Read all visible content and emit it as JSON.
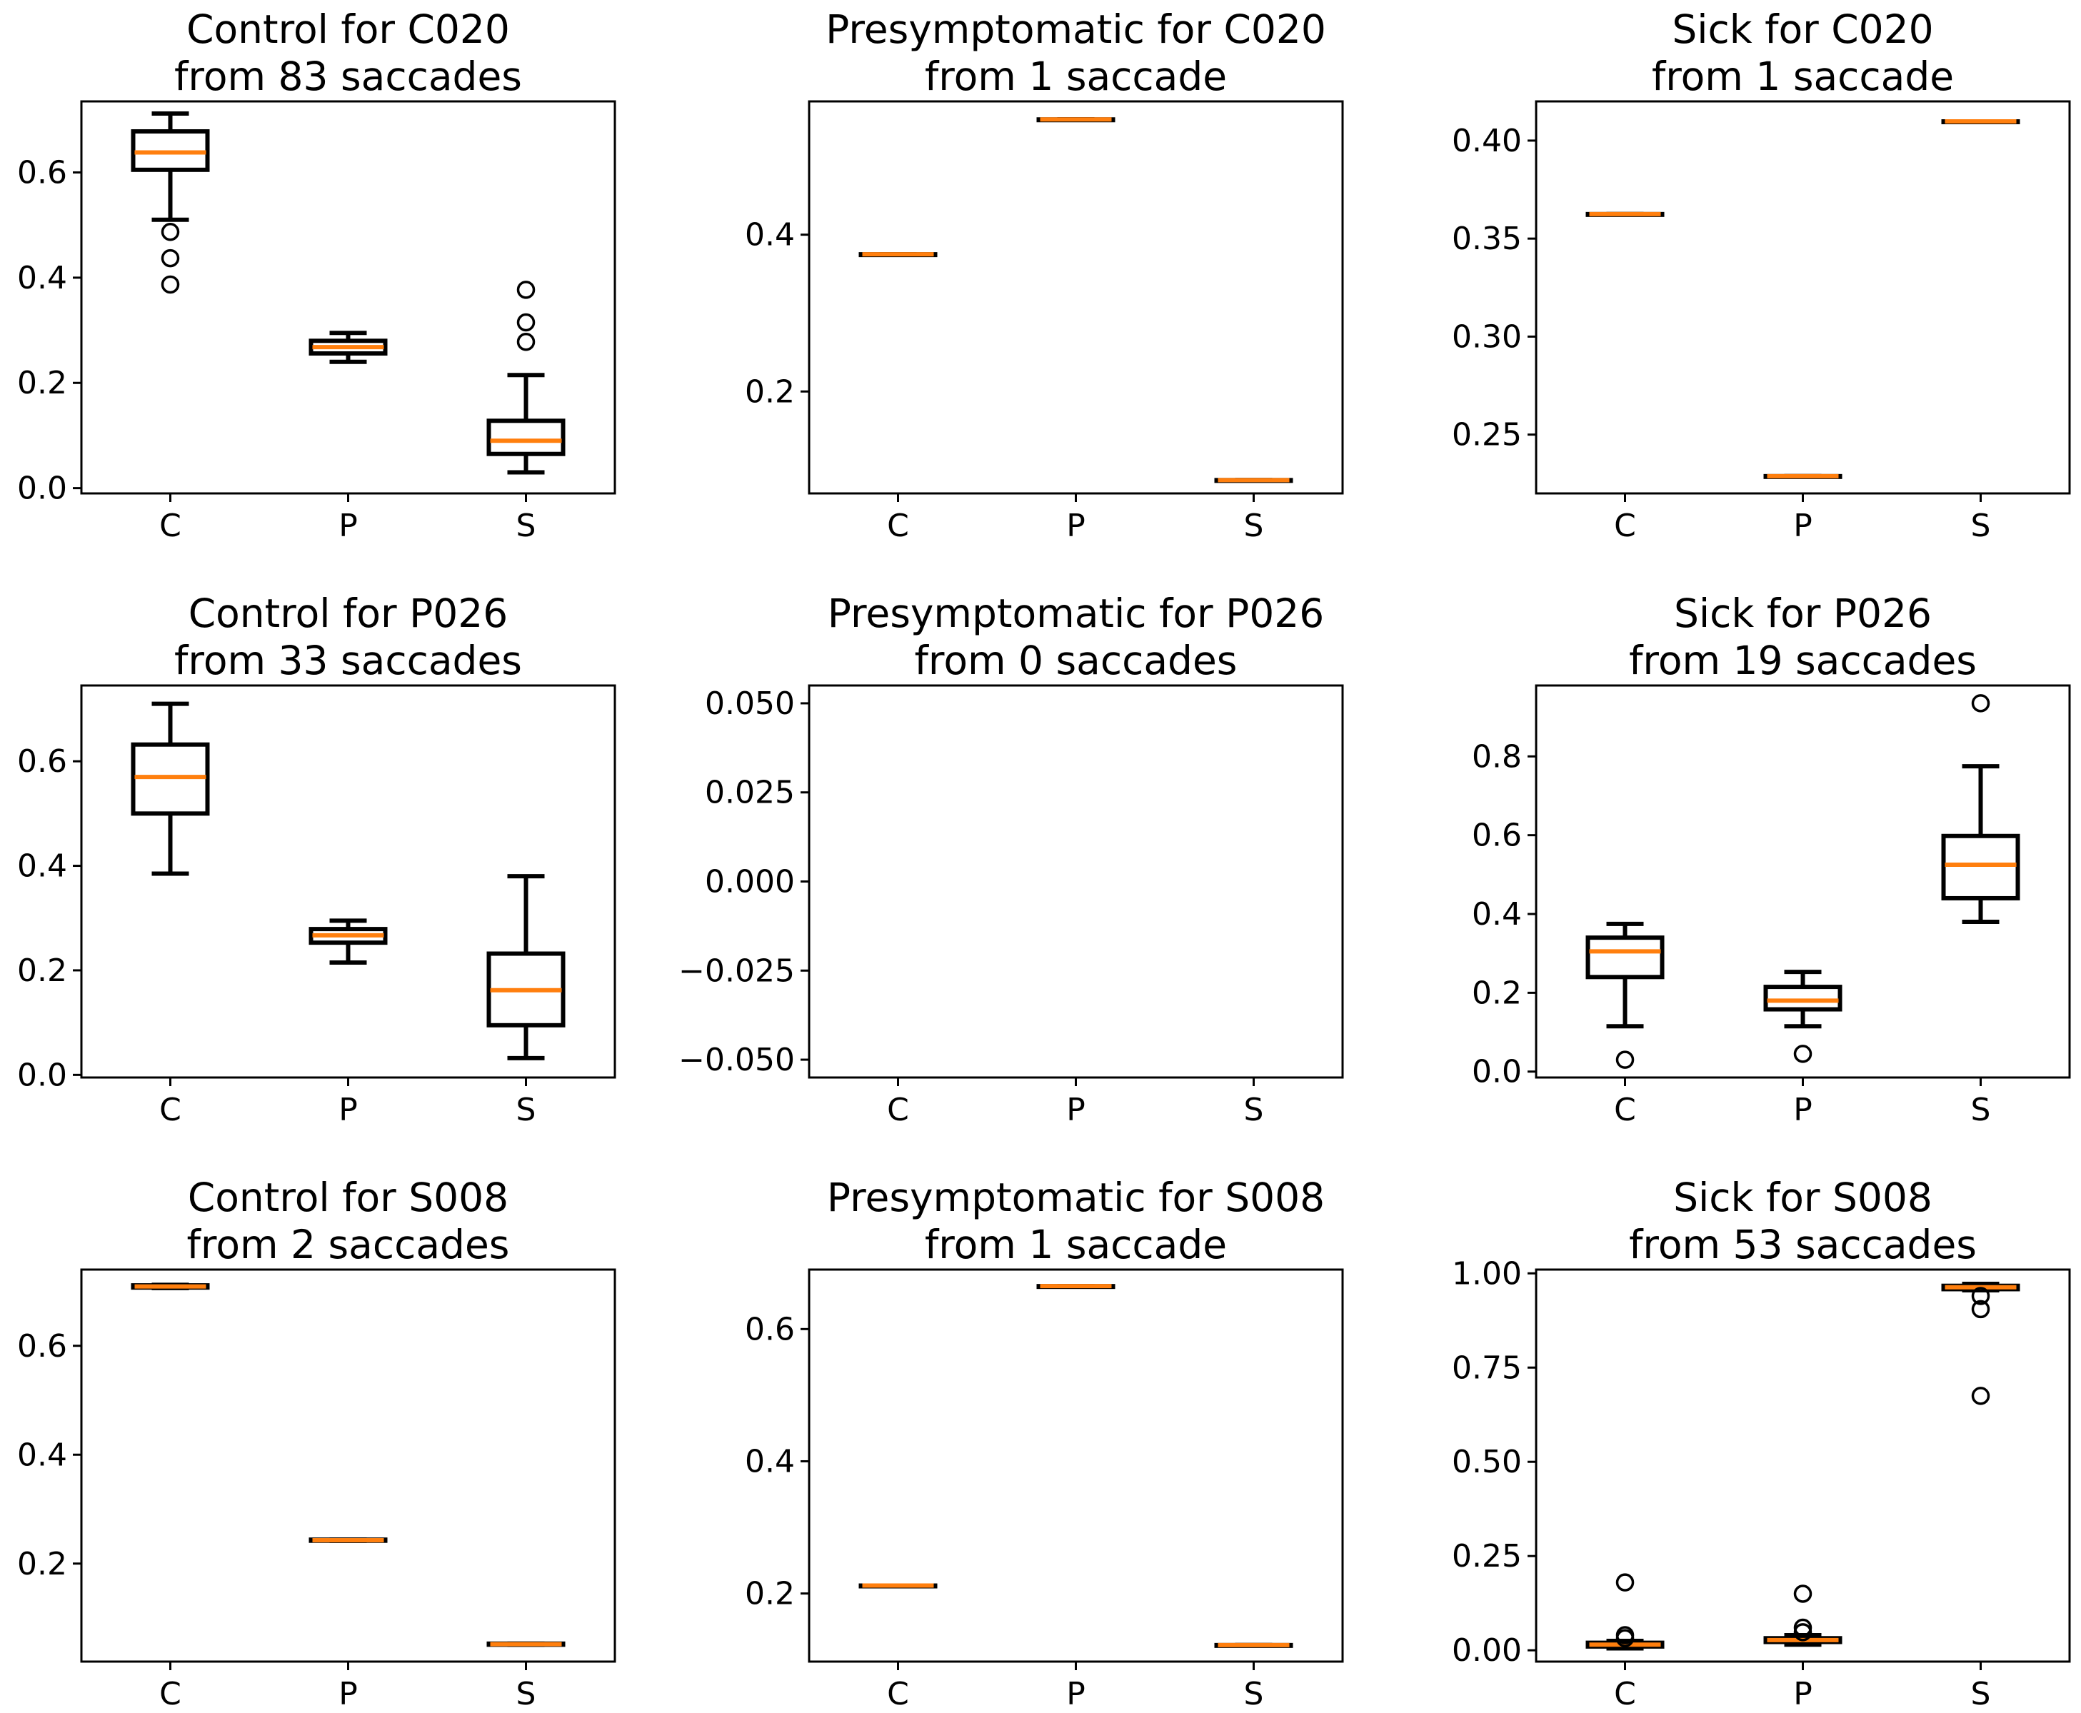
{
  "figure": {
    "colors": {
      "box": "#000000",
      "median": "#ff7f0e",
      "background": "#ffffff"
    }
  },
  "chart_data": [
    {
      "type": "boxplot",
      "title": "Control for C020",
      "subtitle": "from 83 saccades",
      "categories": [
        "C",
        "P",
        "S"
      ],
      "ylim": [
        -0.01,
        0.735
      ],
      "yticks": [
        {
          "value": 0.0,
          "label": "0.0"
        },
        {
          "value": 0.2,
          "label": "0.2"
        },
        {
          "value": 0.4,
          "label": "0.4"
        },
        {
          "value": 0.6,
          "label": "0.6"
        }
      ],
      "boxes": [
        {
          "label": "C",
          "whislo": 0.51,
          "q1": 0.605,
          "med": 0.638,
          "q3": 0.678,
          "whishi": 0.712,
          "fliers": [
            0.487,
            0.437,
            0.387
          ]
        },
        {
          "label": "P",
          "whislo": 0.24,
          "q1": 0.256,
          "med": 0.268,
          "q3": 0.28,
          "whishi": 0.295,
          "fliers": []
        },
        {
          "label": "S",
          "whislo": 0.03,
          "q1": 0.065,
          "med": 0.09,
          "q3": 0.128,
          "whishi": 0.215,
          "fliers": [
            0.377,
            0.315,
            0.278
          ]
        }
      ]
    },
    {
      "type": "boxplot",
      "title": "Presymptomatic for C020",
      "subtitle": "from 1 saccade",
      "categories": [
        "C",
        "P",
        "S"
      ],
      "ylim": [
        0.07,
        0.57
      ],
      "yticks": [
        {
          "value": 0.2,
          "label": "0.2"
        },
        {
          "value": 0.4,
          "label": "0.4"
        }
      ],
      "boxes": [
        {
          "label": "C",
          "whislo": 0.375,
          "q1": 0.375,
          "med": 0.375,
          "q3": 0.375,
          "whishi": 0.375,
          "fliers": []
        },
        {
          "label": "P",
          "whislo": 0.547,
          "q1": 0.547,
          "med": 0.547,
          "q3": 0.547,
          "whishi": 0.547,
          "fliers": []
        },
        {
          "label": "S",
          "whislo": 0.087,
          "q1": 0.087,
          "med": 0.087,
          "q3": 0.087,
          "whishi": 0.087,
          "fliers": []
        }
      ]
    },
    {
      "type": "boxplot",
      "title": "Sick for C020",
      "subtitle": "from 1 saccade",
      "categories": [
        "C",
        "P",
        "S"
      ],
      "ylim": [
        0.22,
        0.42
      ],
      "yticks": [
        {
          "value": 0.25,
          "label": "0.25"
        },
        {
          "value": 0.3,
          "label": "0.30"
        },
        {
          "value": 0.35,
          "label": "0.35"
        },
        {
          "value": 0.4,
          "label": "0.40"
        }
      ],
      "boxes": [
        {
          "label": "C",
          "whislo": 0.3625,
          "q1": 0.3625,
          "med": 0.3625,
          "q3": 0.3625,
          "whishi": 0.3625,
          "fliers": []
        },
        {
          "label": "P",
          "whislo": 0.2288,
          "q1": 0.2288,
          "med": 0.2288,
          "q3": 0.2288,
          "whishi": 0.2288,
          "fliers": []
        },
        {
          "label": "S",
          "whislo": 0.4098,
          "q1": 0.4098,
          "med": 0.4098,
          "q3": 0.4098,
          "whishi": 0.4098,
          "fliers": []
        }
      ]
    },
    {
      "type": "boxplot",
      "title": "Control for P026",
      "subtitle": "from 33 saccades",
      "categories": [
        "C",
        "P",
        "S"
      ],
      "ylim": [
        -0.005,
        0.745
      ],
      "yticks": [
        {
          "value": 0.0,
          "label": "0.0"
        },
        {
          "value": 0.2,
          "label": "0.2"
        },
        {
          "value": 0.4,
          "label": "0.4"
        },
        {
          "value": 0.6,
          "label": "0.6"
        }
      ],
      "boxes": [
        {
          "label": "C",
          "whislo": 0.385,
          "q1": 0.5,
          "med": 0.57,
          "q3": 0.632,
          "whishi": 0.71,
          "fliers": []
        },
        {
          "label": "P",
          "whislo": 0.215,
          "q1": 0.253,
          "med": 0.267,
          "q3": 0.279,
          "whishi": 0.295,
          "fliers": []
        },
        {
          "label": "S",
          "whislo": 0.032,
          "q1": 0.095,
          "med": 0.162,
          "q3": 0.232,
          "whishi": 0.38,
          "fliers": []
        }
      ]
    },
    {
      "type": "boxplot",
      "title": "Presymptomatic for P026",
      "subtitle": "from 0 saccades",
      "categories": [
        "C",
        "P",
        "S"
      ],
      "ylim": [
        -0.055,
        0.055
      ],
      "yticks": [
        {
          "value": -0.05,
          "label": "−0.050"
        },
        {
          "value": -0.025,
          "label": "−0.025"
        },
        {
          "value": 0.0,
          "label": "0.000"
        },
        {
          "value": 0.025,
          "label": "0.025"
        },
        {
          "value": 0.05,
          "label": "0.050"
        }
      ],
      "boxes": []
    },
    {
      "type": "boxplot",
      "title": "Sick for P026",
      "subtitle": "from 19 saccades",
      "categories": [
        "C",
        "P",
        "S"
      ],
      "ylim": [
        -0.015,
        0.98
      ],
      "yticks": [
        {
          "value": 0.0,
          "label": "0.0"
        },
        {
          "value": 0.2,
          "label": "0.2"
        },
        {
          "value": 0.4,
          "label": "0.4"
        },
        {
          "value": 0.6,
          "label": "0.6"
        },
        {
          "value": 0.8,
          "label": "0.8"
        }
      ],
      "boxes": [
        {
          "label": "C",
          "whislo": 0.115,
          "q1": 0.24,
          "med": 0.305,
          "q3": 0.34,
          "whishi": 0.375,
          "fliers": [
            0.03
          ]
        },
        {
          "label": "P",
          "whislo": 0.115,
          "q1": 0.158,
          "med": 0.18,
          "q3": 0.215,
          "whishi": 0.253,
          "fliers": [
            0.045
          ]
        },
        {
          "label": "S",
          "whislo": 0.38,
          "q1": 0.44,
          "med": 0.525,
          "q3": 0.598,
          "whishi": 0.775,
          "fliers": [
            0.935
          ]
        }
      ]
    },
    {
      "type": "boxplot",
      "title": "Control for S008",
      "subtitle": "from 2 saccades",
      "categories": [
        "C",
        "P",
        "S"
      ],
      "ylim": [
        0.02,
        0.74
      ],
      "yticks": [
        {
          "value": 0.2,
          "label": "0.2"
        },
        {
          "value": 0.4,
          "label": "0.4"
        },
        {
          "value": 0.6,
          "label": "0.6"
        }
      ],
      "boxes": [
        {
          "label": "C",
          "whislo": 0.706,
          "q1": 0.707,
          "med": 0.709,
          "q3": 0.711,
          "whishi": 0.712,
          "fliers": []
        },
        {
          "label": "P",
          "whislo": 0.242,
          "q1": 0.242,
          "med": 0.243,
          "q3": 0.244,
          "whishi": 0.244,
          "fliers": []
        },
        {
          "label": "S",
          "whislo": 0.051,
          "q1": 0.051,
          "med": 0.052,
          "q3": 0.053,
          "whishi": 0.053,
          "fliers": []
        }
      ]
    },
    {
      "type": "boxplot",
      "title": "Presymptomatic for S008",
      "subtitle": "from 1 saccade",
      "categories": [
        "C",
        "P",
        "S"
      ],
      "ylim": [
        0.097,
        0.69
      ],
      "yticks": [
        {
          "value": 0.2,
          "label": "0.2"
        },
        {
          "value": 0.4,
          "label": "0.4"
        },
        {
          "value": 0.6,
          "label": "0.6"
        }
      ],
      "boxes": [
        {
          "label": "C",
          "whislo": 0.212,
          "q1": 0.212,
          "med": 0.212,
          "q3": 0.212,
          "whishi": 0.212,
          "fliers": []
        },
        {
          "label": "P",
          "whislo": 0.665,
          "q1": 0.665,
          "med": 0.665,
          "q3": 0.665,
          "whishi": 0.665,
          "fliers": []
        },
        {
          "label": "S",
          "whislo": 0.122,
          "q1": 0.122,
          "med": 0.122,
          "q3": 0.122,
          "whishi": 0.122,
          "fliers": []
        }
      ]
    },
    {
      "type": "boxplot",
      "title": "Sick for S008",
      "subtitle": "from 53 saccades",
      "categories": [
        "C",
        "P",
        "S"
      ],
      "ylim": [
        -0.03,
        1.01
      ],
      "yticks": [
        {
          "value": 0.0,
          "label": "0.00"
        },
        {
          "value": 0.25,
          "label": "0.25"
        },
        {
          "value": 0.5,
          "label": "0.50"
        },
        {
          "value": 0.75,
          "label": "0.75"
        },
        {
          "value": 1.0,
          "label": "1.00"
        }
      ],
      "boxes": [
        {
          "label": "C",
          "whislo": 0.005,
          "q1": 0.01,
          "med": 0.015,
          "q3": 0.02,
          "whishi": 0.025,
          "fliers": [
            0.18,
            0.04,
            0.032
          ]
        },
        {
          "label": "P",
          "whislo": 0.015,
          "q1": 0.022,
          "med": 0.027,
          "q3": 0.032,
          "whishi": 0.04,
          "fliers": [
            0.15,
            0.06,
            0.048
          ]
        },
        {
          "label": "S",
          "whislo": 0.955,
          "q1": 0.958,
          "med": 0.963,
          "q3": 0.967,
          "whishi": 0.972,
          "fliers": [
            0.94,
            0.905,
            0.675
          ]
        }
      ]
    }
  ]
}
